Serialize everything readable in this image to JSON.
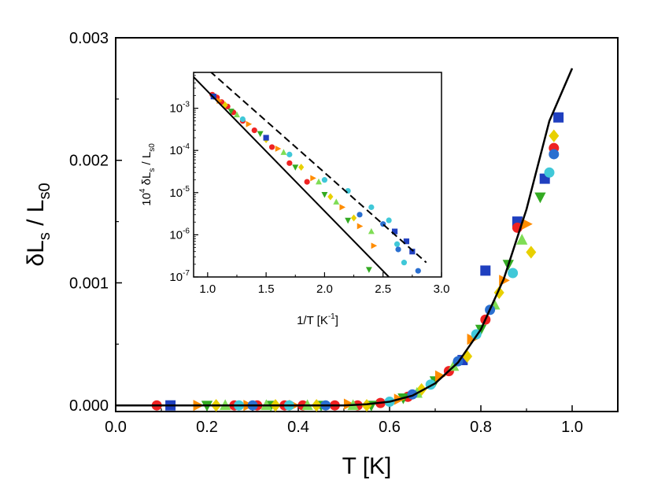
{
  "chart_data": [
    {
      "type": "scatter",
      "xlabel": "T [K]",
      "ylabel_parts": {
        "base": "δL",
        "sub1": "s",
        "slash": " / L",
        "sub2": "s0"
      },
      "xlim": [
        0.0,
        1.1
      ],
      "ylim": [
        -5e-05,
        0.003
      ],
      "x_ticks": [
        "0.0",
        "0.2",
        "0.4",
        "0.6",
        "0.8",
        "1.0"
      ],
      "y_ticks": [
        "0.000",
        "0.001",
        "0.002",
        "0.003"
      ],
      "grid": false,
      "legend": "none",
      "series": [
        {
          "marker": "square",
          "color": "#1f3fbf",
          "points": [
            [
              0.12,
              0.0
            ],
            [
              0.76,
              0.00037
            ],
            [
              0.81,
              0.0011
            ],
            [
              0.88,
              0.0015
            ],
            [
              0.94,
              0.00185
            ],
            [
              0.97,
              0.00235
            ]
          ]
        },
        {
          "marker": "circle",
          "color": "#ee2222",
          "points": [
            [
              0.09,
              0.0
            ],
            [
              0.26,
              0.0
            ],
            [
              0.31,
              0.0
            ],
            [
              0.37,
              0.0
            ],
            [
              0.41,
              0.0
            ],
            [
              0.48,
              0.0
            ],
            [
              0.53,
              0.0
            ],
            [
              0.58,
              2e-05
            ],
            [
              0.64,
              7e-05
            ],
            [
              0.73,
              0.00028
            ],
            [
              0.81,
              0.0007
            ],
            [
              0.88,
              0.00145
            ],
            [
              0.96,
              0.0021
            ]
          ]
        },
        {
          "marker": "triangle-down",
          "color": "#33aa22",
          "points": [
            [
              0.2,
              0.0
            ],
            [
              0.34,
              0.0
            ],
            [
              0.45,
              0.0
            ],
            [
              0.56,
              0.0
            ],
            [
              0.63,
              6e-05
            ],
            [
              0.7,
              0.0002
            ],
            [
              0.8,
              0.00062
            ],
            [
              0.86,
              0.00115
            ],
            [
              0.93,
              0.0017
            ]
          ]
        },
        {
          "marker": "diamond",
          "color": "#e8d000",
          "points": [
            [
              0.22,
              0.0
            ],
            [
              0.35,
              0.0
            ],
            [
              0.44,
              0.0
            ],
            [
              0.55,
              0.0
            ],
            [
              0.67,
              0.00013
            ],
            [
              0.77,
              0.0004
            ],
            [
              0.84,
              0.00092
            ],
            [
              0.91,
              0.00125
            ],
            [
              0.96,
              0.0022
            ]
          ]
        },
        {
          "marker": "triangle-right",
          "color": "#ff8c00",
          "points": [
            [
              0.18,
              0.0
            ],
            [
              0.29,
              0.0
            ],
            [
              0.39,
              0.0
            ],
            [
              0.51,
              1e-05
            ],
            [
              0.62,
              5e-05
            ],
            [
              0.71,
              0.00024
            ],
            [
              0.78,
              0.00054
            ],
            [
              0.85,
              0.00102
            ],
            [
              0.9,
              0.00148
            ]
          ]
        },
        {
          "marker": "triangle-up",
          "color": "#7fdd55",
          "points": [
            [
              0.24,
              0.0
            ],
            [
              0.33,
              0.0
            ],
            [
              0.42,
              0.0
            ],
            [
              0.52,
              0.0
            ],
            [
              0.66,
              0.0001
            ],
            [
              0.74,
              0.00032
            ],
            [
              0.83,
              0.00082
            ],
            [
              0.89,
              0.00135
            ]
          ]
        },
        {
          "marker": "circle",
          "color": "#40c8d8",
          "points": [
            [
              0.27,
              0.0
            ],
            [
              0.38,
              0.0
            ],
            [
              0.6,
              3e-05
            ],
            [
              0.69,
              0.00017
            ],
            [
              0.79,
              0.00058
            ],
            [
              0.87,
              0.00108
            ],
            [
              0.95,
              0.0019
            ]
          ]
        },
        {
          "marker": "circle",
          "color": "#2a6fd0",
          "points": [
            [
              0.3,
              0.0
            ],
            [
              0.46,
              0.0
            ],
            [
              0.65,
              9e-05
            ],
            [
              0.75,
              0.00036
            ],
            [
              0.82,
              0.00078
            ],
            [
              0.96,
              0.00205
            ]
          ]
        }
      ],
      "fit_line": {
        "style": "solid",
        "color": "#000000",
        "x": [
          0.0,
          0.5,
          0.55,
          0.6,
          0.65,
          0.7,
          0.75,
          0.8,
          0.85,
          0.9,
          0.95,
          1.0
        ],
        "y": [
          0.0,
          0.0,
          1e-05,
          3e-05,
          8e-05,
          0.00018,
          0.00035,
          0.00062,
          0.00103,
          0.0016,
          0.00232,
          0.00275
        ]
      },
      "inset": {
        "type": "scatter",
        "xlabel_parts": {
          "base": "1/T [K",
          "sup": "-1",
          "tail": "]"
        },
        "ylabel_parts": {
          "base": "10",
          "sup": "4",
          "mid": " δL",
          "sub1": "s",
          "slash": " / L",
          "sub2": "s0"
        },
        "xlim": [
          0.88,
          3.0
        ],
        "ylim_log10": [
          -7,
          -2.15
        ],
        "log_y": true,
        "x_ticks": [
          "1.0",
          "1.5",
          "2.0",
          "2.5",
          "3.0"
        ],
        "y_ticks": [
          {
            "base": "10",
            "exp": "-3",
            "value": 0.001
          },
          {
            "base": "10",
            "exp": "-4",
            "value": 0.0001
          },
          {
            "base": "10",
            "exp": "-5",
            "value": 1e-05
          },
          {
            "base": "10",
            "exp": "-6",
            "value": 1e-06
          },
          {
            "base": "10",
            "exp": "-7",
            "value": 1e-07
          }
        ],
        "lines": [
          {
            "style": "solid",
            "color": "#000000",
            "x": [
              0.88,
              2.55
            ],
            "y": [
              0.0055,
              1e-07
            ]
          },
          {
            "style": "dashed",
            "color": "#000000",
            "x": [
              1.02,
              2.87
            ],
            "y": [
              0.0075,
              2.2e-07
            ]
          }
        ],
        "series": [
          {
            "marker": "circle",
            "color": "#ee2222",
            "x": [
              1.04,
              1.08,
              1.12,
              1.17,
              1.22,
              1.3,
              1.4,
              1.55,
              1.7,
              1.85
            ],
            "y": [
              0.0021,
              0.0018,
              0.0014,
              0.0011,
              0.0008,
              0.0005,
              0.0003,
              0.00012,
              5e-05,
              1.8e-05
            ]
          },
          {
            "marker": "triangle-down",
            "color": "#33aa22",
            "x": [
              1.05,
              1.2,
              1.45,
              1.75,
              2.0,
              2.2,
              2.38
            ],
            "y": [
              0.0019,
              0.00085,
              0.00025,
              4e-05,
              9e-06,
              2.2e-06,
              1.5e-07
            ]
          },
          {
            "marker": "triangle-right",
            "color": "#ff8c00",
            "x": [
              1.1,
              1.35,
              1.6,
              1.9,
              2.15,
              2.3,
              2.42
            ],
            "y": [
              0.0015,
              0.00042,
              0.00011,
              2.2e-05,
              4.5e-06,
              1.6e-06,
              5.5e-07
            ]
          },
          {
            "marker": "diamond",
            "color": "#e8d000",
            "x": [
              1.15,
              1.5,
              1.8,
              2.05,
              2.25
            ],
            "y": [
              0.0012,
              0.00018,
              4e-05,
              8e-06,
              2.5e-06
            ]
          },
          {
            "marker": "triangle-up",
            "color": "#7fdd55",
            "x": [
              1.25,
              1.65,
              1.95,
              2.1,
              2.4
            ],
            "y": [
              0.0007,
              9e-05,
              1.8e-05,
              6e-06,
              1.2e-06
            ]
          },
          {
            "marker": "circle",
            "color": "#40c8d8",
            "x": [
              1.3,
              1.7,
              2.0,
              2.2,
              2.4,
              2.55,
              2.62,
              2.68
            ],
            "y": [
              0.00055,
              8e-05,
              2e-05,
              1.1e-05,
              4.5e-06,
              2.2e-06,
              6e-07,
              2.2e-07
            ]
          },
          {
            "marker": "square",
            "color": "#1f3fbf",
            "x": [
              1.05,
              1.5,
              2.6,
              2.7,
              2.75
            ],
            "y": [
              0.0019,
              0.0002,
              1.2e-06,
              7e-07,
              4e-07
            ]
          },
          {
            "marker": "circle",
            "color": "#2a6fd0",
            "x": [
              2.3,
              2.5,
              2.63,
              2.8
            ],
            "y": [
              3e-06,
              1.8e-06,
              4.5e-07,
              1.4e-07
            ]
          }
        ]
      }
    }
  ]
}
